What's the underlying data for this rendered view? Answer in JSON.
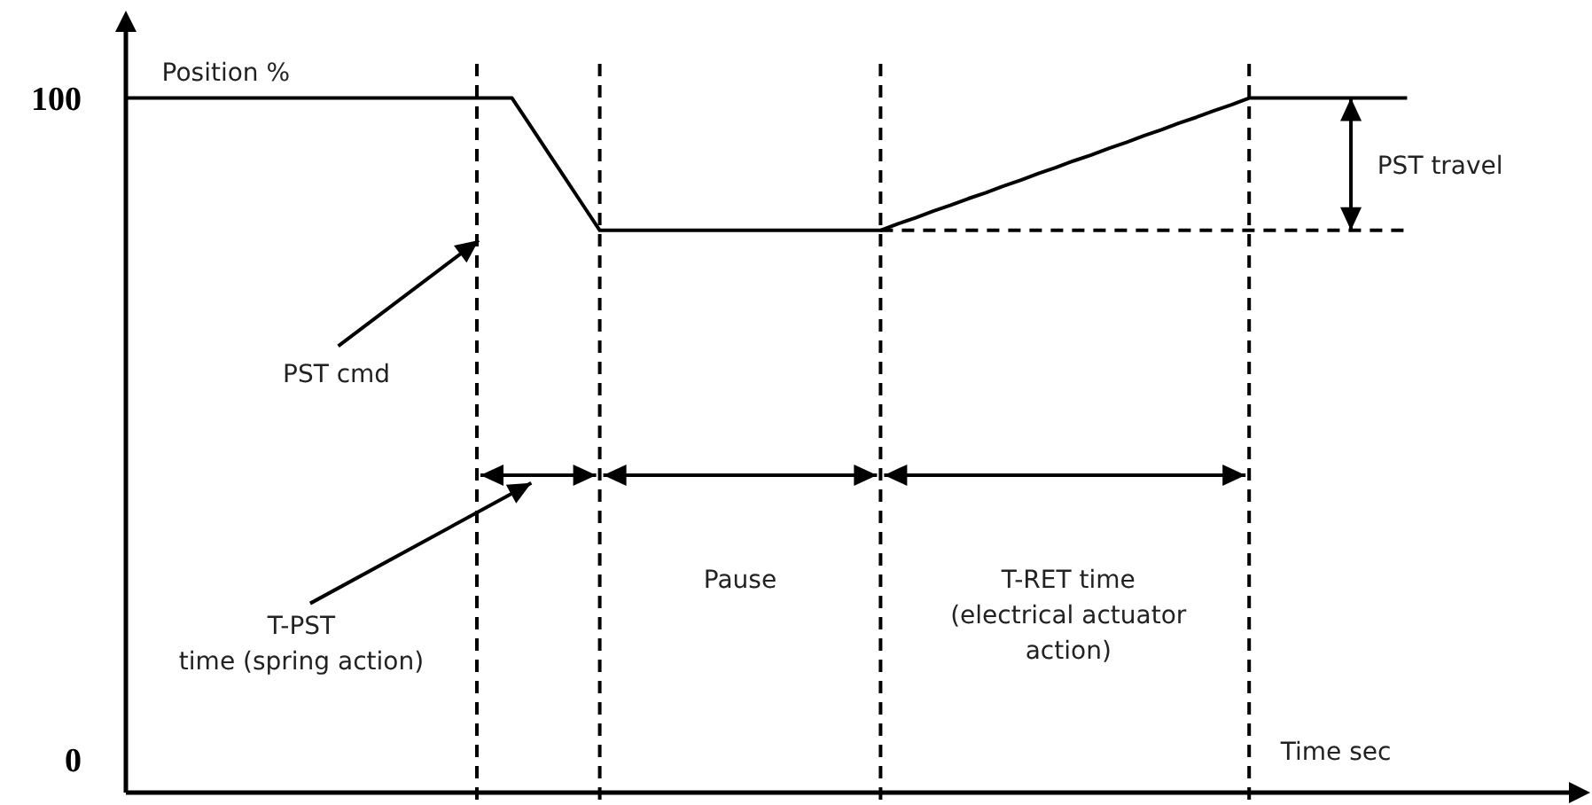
{
  "chart_data": {
    "type": "line",
    "xlabel": "Time sec",
    "ylabel": "Position %",
    "ylim": [
      -5,
      110
    ],
    "yticks": [
      0,
      100
    ],
    "tick_labels": "y",
    "categories": [
      null,
      null,
      null,
      null,
      null,
      null,
      null,
      null,
      null,
      null,
      null,
      null,
      null,
      null,
      null,
      null,
      null,
      null,
      null,
      null,
      null,
      null,
      null,
      null,
      null,
      null,
      null,
      null,
      null,
      null,
      null,
      null,
      null,
      null,
      null,
      null,
      null,
      null,
      null,
      null,
      null,
      null,
      null,
      null,
      null,
      null,
      null,
      null,
      null,
      null,
      null,
      null,
      null,
      null,
      null,
      null,
      null,
      null,
      null,
      null,
      null,
      null,
      null,
      null,
      null,
      null,
      null,
      null,
      null,
      null,
      null,
      null,
      null,
      null
    ],
    "series": [
      {
        "color": "#000000",
        "line_style": "solid",
        "values": [
          100,
          100,
          100,
          100,
          100,
          100,
          100,
          100,
          100,
          100,
          100,
          100,
          100,
          100,
          100,
          100,
          100,
          100,
          100,
          100,
          100,
          100,
          100,
          96,
          92,
          88,
          84,
          80,
          80,
          80,
          80,
          80,
          80,
          80,
          80,
          80,
          80,
          80,
          80,
          80,
          80,
          80,
          80,
          80,
          81,
          81.9,
          82.9,
          83.8,
          84.8,
          85.7,
          86.7,
          87.6,
          88.6,
          89.5,
          90.5,
          91.4,
          92.4,
          93.3,
          94.3,
          95.2,
          96.2,
          97.1,
          98.1,
          99,
          100,
          100,
          100,
          100,
          100,
          100,
          100,
          100,
          100,
          100
        ]
      },
      {
        "color": "#000000",
        "line_style": "dashed",
        "values": [
          null,
          null,
          null,
          null,
          null,
          null,
          null,
          null,
          null,
          null,
          null,
          null,
          null,
          null,
          null,
          null,
          null,
          null,
          null,
          null,
          null,
          null,
          null,
          null,
          null,
          null,
          null,
          null,
          null,
          null,
          null,
          null,
          null,
          null,
          null,
          null,
          null,
          null,
          null,
          null,
          null,
          null,
          null,
          80,
          80,
          80,
          80,
          80,
          80,
          80,
          80,
          80,
          80,
          80,
          80,
          80,
          80,
          80,
          80,
          80,
          80,
          80,
          80,
          80,
          80,
          80,
          80,
          80,
          80,
          80,
          80,
          80,
          80,
          80
        ]
      }
    ],
    "annotations": [
      "PST cmd",
      "T-PST\ntime (spring action)",
      "Pause",
      "T-RET time\n(electrical actuator\naction)",
      "PST travel"
    ]
  }
}
